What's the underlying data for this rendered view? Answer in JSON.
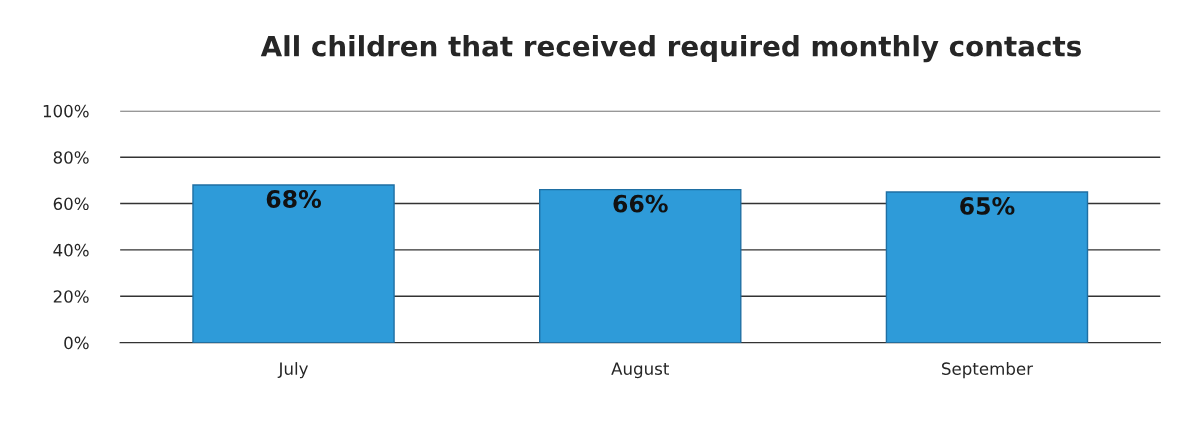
{
  "chart_data": {
    "type": "bar",
    "title": "All children that received required monthly contacts",
    "categories": [
      "July",
      "August",
      "September"
    ],
    "values": [
      68,
      66,
      65
    ],
    "value_labels": [
      "68%",
      "66%",
      "65%"
    ],
    "color": "#2e9bd9",
    "ylim": [
      0,
      100
    ],
    "yticks": [
      {
        "value": 0,
        "label": "0%"
      },
      {
        "value": 20,
        "label": "20%"
      },
      {
        "value": 40,
        "label": "40%"
      },
      {
        "value": 60,
        "label": "60%"
      },
      {
        "value": 80,
        "label": "80%"
      },
      {
        "value": 100,
        "label": "100%"
      }
    ],
    "grid": "y",
    "legend": false
  }
}
